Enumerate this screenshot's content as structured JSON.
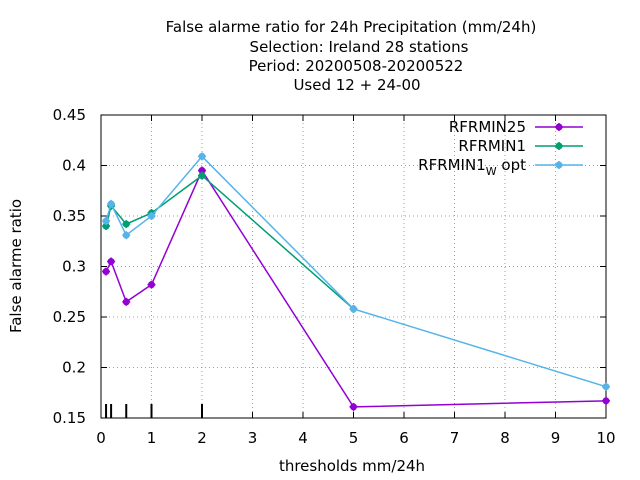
{
  "chart_data": {
    "type": "line",
    "title_lines": [
      "False alarme ratio  for 24h Precipitation (mm/24h)",
      "Selection: Ireland     28 stations",
      "Period: 20200508-20200522",
      "Used  12 + 24-00"
    ],
    "xlabel": "thresholds mm/24h",
    "ylabel": "False alarme ratio",
    "xlim": [
      0,
      10
    ],
    "ylim": [
      0.15,
      0.45
    ],
    "xticks": [
      0,
      1,
      2,
      3,
      4,
      5,
      6,
      7,
      8,
      9,
      10
    ],
    "xtick_labels": [
      "0",
      "1",
      "2",
      "3",
      "4",
      "5",
      "6",
      "7",
      "8",
      "9",
      "10"
    ],
    "yticks": [
      0.15,
      0.2,
      0.25,
      0.3,
      0.35,
      0.4,
      0.45
    ],
    "ytick_labels": [
      "0.15",
      "0.2",
      "0.25",
      "0.3",
      "0.35",
      "0.4",
      "0.45"
    ],
    "grid": true,
    "legend_position": "top-right",
    "threshold_markers": [
      0.1,
      0.2,
      0.5,
      1,
      2
    ],
    "series": [
      {
        "name": "RFRMIN25",
        "color": "#9400d3",
        "x": [
          0.1,
          0.2,
          0.5,
          1,
          2,
          5,
          10
        ],
        "y": [
          0.295,
          0.305,
          0.265,
          0.282,
          0.395,
          0.161,
          0.167
        ]
      },
      {
        "name": "RFRMIN1",
        "color": "#009e73",
        "x": [
          0.1,
          0.2,
          0.5,
          1,
          2,
          5
        ],
        "y": [
          0.34,
          0.36,
          0.342,
          0.353,
          0.39,
          0.258
        ]
      },
      {
        "name": "RFRMIN1",
        "name_sub": "W",
        "name_suffix": "opt",
        "color": "#56b4e9",
        "x": [
          0.1,
          0.2,
          0.5,
          1,
          2,
          5,
          10
        ],
        "y": [
          0.345,
          0.362,
          0.331,
          0.35,
          0.409,
          0.258,
          0.181
        ]
      }
    ]
  }
}
